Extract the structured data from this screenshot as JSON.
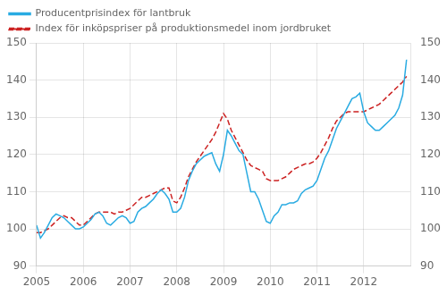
{
  "chart_data": {
    "type": "line",
    "x": [
      2005,
      2005.083333333333,
      2005.166666666667,
      2005.25,
      2005.333333333333,
      2005.416666666667,
      2005.5,
      2005.583333333333,
      2005.666666666667,
      2005.75,
      2005.833333333333,
      2005.916666666667,
      2006,
      2006.083333333333,
      2006.166666666667,
      2006.25,
      2006.333333333333,
      2006.416666666667,
      2006.5,
      2006.583333333333,
      2006.666666666667,
      2006.75,
      2006.833333333333,
      2006.916666666667,
      2007,
      2007.083333333333,
      2007.166666666667,
      2007.25,
      2007.333333333333,
      2007.416666666667,
      2007.5,
      2007.583333333333,
      2007.666666666667,
      2007.75,
      2007.833333333333,
      2007.916666666667,
      2008,
      2008.083333333333,
      2008.166666666667,
      2008.25,
      2008.333333333333,
      2008.416666666667,
      2008.5,
      2008.583333333333,
      2008.666666666667,
      2008.75,
      2008.833333333333,
      2008.916666666667,
      2009,
      2009.083333333333,
      2009.166666666667,
      2009.25,
      2009.333333333333,
      2009.416666666667,
      2009.5,
      2009.583333333333,
      2009.666666666667,
      2009.75,
      2009.833333333333,
      2009.916666666667,
      2010,
      2010.083333333333,
      2010.166666666667,
      2010.25,
      2010.333333333333,
      2010.416666666667,
      2010.5,
      2010.583333333333,
      2010.666666666667,
      2010.75,
      2010.833333333333,
      2010.916666666667,
      2011,
      2011.083333333333,
      2011.166666666667,
      2011.25,
      2011.333333333333,
      2011.416666666667,
      2011.5,
      2011.583333333333,
      2011.666666666667,
      2011.75,
      2011.833333333333,
      2011.916666666667,
      2012,
      2012.083333333333,
      2012.166666666667,
      2012.25,
      2012.333333333333,
      2012.416666666667,
      2012.5,
      2012.583333333333,
      2012.666666666667,
      2012.75,
      2012.833333333333,
      2012.916666666667
    ],
    "xlim": [
      2005,
      2013
    ],
    "xticks": [
      2005,
      2006,
      2007,
      2008,
      2009,
      2010,
      2011,
      2012
    ],
    "ylim": [
      90,
      150
    ],
    "yticks": [
      90,
      100,
      110,
      120,
      130,
      140,
      150
    ],
    "y2lim": [
      90,
      150
    ],
    "y2ticks": [
      90,
      100,
      110,
      120,
      130,
      140,
      150
    ],
    "grid": true,
    "legend": "upper left",
    "series": [
      {
        "name": "Producentprisindex för lantbruk",
        "color": "#29ABE2",
        "line_style": "solid",
        "values": [
          101.0,
          97.5,
          99.0,
          101.0,
          103.0,
          104.0,
          103.5,
          103.0,
          102.0,
          101.0,
          100.0,
          100.0,
          100.5,
          101.5,
          102.5,
          104.0,
          104.5,
          103.5,
          101.5,
          101.0,
          102.0,
          103.0,
          103.5,
          103.0,
          101.5,
          102.0,
          104.5,
          105.5,
          106.0,
          107.0,
          108.0,
          109.5,
          110.5,
          109.5,
          108.0,
          104.5,
          104.5,
          105.5,
          108.5,
          113.0,
          115.5,
          117.5,
          118.5,
          119.5,
          120.0,
          120.5,
          117.5,
          115.5,
          120.0,
          126.5,
          125.0,
          123.0,
          121.0,
          120.0,
          115.0,
          110.0,
          110.0,
          108.0,
          105.0,
          102.0,
          101.5,
          103.5,
          104.5,
          106.5,
          106.5,
          107.0,
          107.0,
          107.5,
          109.5,
          110.5,
          111.0,
          111.5,
          113.0,
          116.0,
          119.0,
          121.0,
          124.0,
          127.0,
          129.0,
          131.0,
          133.0,
          135.0,
          135.5,
          136.5,
          131.5,
          128.5,
          127.5,
          126.5,
          126.5,
          127.5,
          128.5,
          129.5,
          130.5,
          132.5,
          136.0,
          145.5
        ]
      },
      {
        "name": "Index för inköpspriser på produktionsmedel inom jordbruket",
        "color": "#CC2222",
        "line_style": "dashed",
        "axis": "y2",
        "values": [
          99.0,
          99.0,
          99.5,
          100.0,
          101.0,
          102.0,
          103.0,
          103.5,
          103.0,
          103.0,
          102.0,
          101.0,
          101.0,
          102.0,
          103.0,
          104.0,
          104.5,
          104.5,
          104.5,
          104.5,
          104.0,
          104.5,
          104.5,
          105.0,
          105.5,
          106.5,
          107.5,
          108.5,
          108.5,
          109.0,
          109.5,
          110.0,
          110.5,
          111.0,
          111.0,
          107.5,
          107.0,
          108.5,
          111.0,
          114.0,
          116.0,
          118.0,
          119.5,
          121.0,
          122.5,
          124.0,
          126.0,
          128.5,
          131.0,
          129.5,
          126.5,
          124.5,
          122.5,
          120.5,
          118.5,
          117.0,
          116.5,
          116.0,
          115.5,
          113.5,
          113.0,
          113.0,
          113.0,
          113.5,
          114.0,
          115.0,
          116.0,
          116.5,
          117.0,
          117.5,
          117.5,
          118.0,
          119.0,
          120.5,
          122.5,
          124.5,
          127.0,
          129.0,
          130.0,
          131.0,
          131.5,
          131.5,
          131.5,
          131.5,
          131.5,
          132.0,
          132.5,
          133.0,
          133.5,
          134.5,
          135.5,
          136.5,
          137.5,
          138.5,
          139.5,
          141.0
        ]
      }
    ]
  }
}
